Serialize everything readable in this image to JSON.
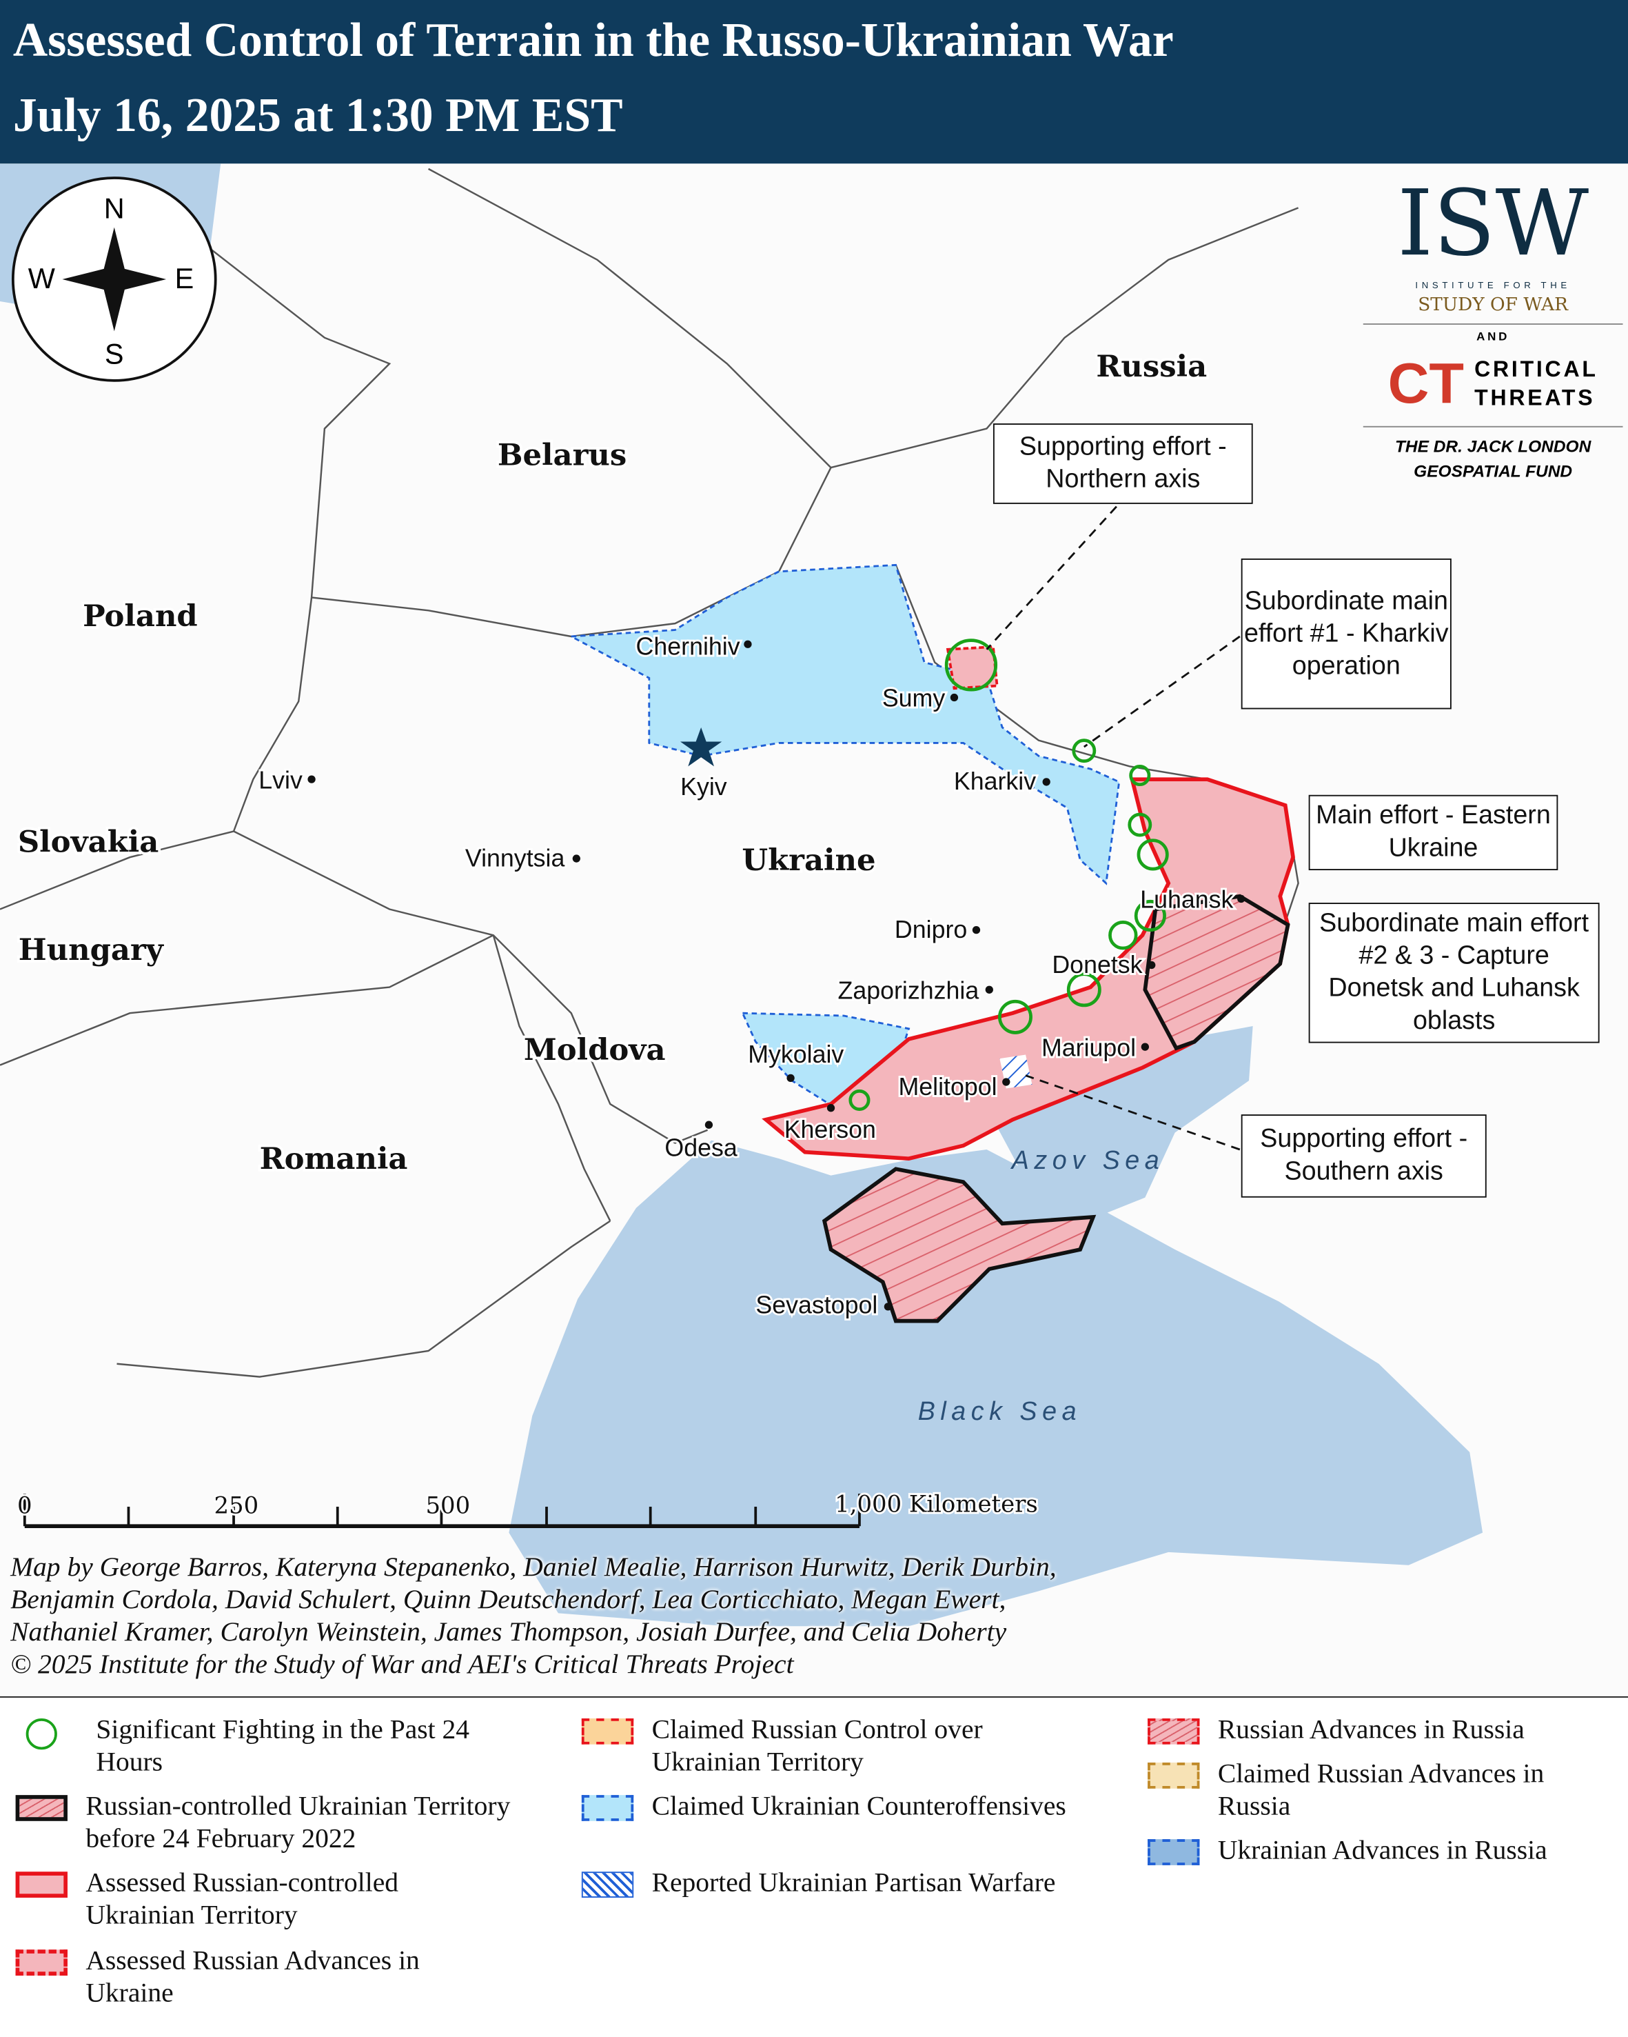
{
  "header": {
    "title": "Assessed Control of Terrain in the Russo-Ukrainian War",
    "subtitle": "July 16, 2025 at 1:30 PM EST"
  },
  "compass": {
    "n": "N",
    "s": "S",
    "e": "E",
    "w": "W"
  },
  "logos": {
    "isw": "ISW",
    "isw_line1": "INSTITUTE FOR THE",
    "isw_line2": "STUDY OF WAR",
    "and": "AND",
    "ct_mark": "CT",
    "ct_line1": "CRITICAL",
    "ct_line2": "THREATS",
    "fund_line1": "THE DR. JACK LONDON",
    "fund_line2": "GEOSPATIAL FUND"
  },
  "countries": {
    "russia": "Russia",
    "belarus": "Belarus",
    "poland": "Poland",
    "ukraine": "Ukraine",
    "slovakia": "Slovakia",
    "hungary": "Hungary",
    "moldova": "Moldova",
    "romania": "Romania"
  },
  "cities": {
    "chernihiv": "Chernihiv",
    "sumy": "Sumy",
    "kyiv": "Kyiv",
    "kharkiv": "Kharkiv",
    "lviv": "Lviv",
    "vinnytsia": "Vinnytsia",
    "dnipro": "Dnipro",
    "luhansk": "Luhansk",
    "donetsk": "Donetsk",
    "zaporizhzhia": "Zaporizhzhia",
    "mariupol": "Mariupol",
    "mykolaiv": "Mykolaiv",
    "melitopol": "Melitopol",
    "kherson": "Kherson",
    "odesa": "Odesa",
    "sevastopol": "Sevastopol"
  },
  "seas": {
    "azov": "Azov Sea",
    "black": "Black Sea"
  },
  "callouts": {
    "northern": "Supporting effort - Northern axis",
    "kharkiv": "Subordinate main effort #1 - Kharkiv operation",
    "eastern": "Main effort - Eastern Ukraine",
    "donetsk_luhansk": "Subordinate main effort #2 & 3 - Capture Donetsk and Luhansk oblasts",
    "southern": "Supporting effort - Southern axis"
  },
  "scale_bar": {
    "t0": "0",
    "t250": "250",
    "t500": "500",
    "t1000": "1,000 Kilometers"
  },
  "credits": [
    "Map by George Barros, Kateryna Stepanenko, Daniel Mealie, Harrison Hurwitz, Derik Durbin,",
    "Benjamin Cordola, David Schulert, Quinn Deutschendorf, Lea Corticchiato, Megan Ewert,",
    "Nathaniel Kramer, Carolyn Weinstein, James Thompson, Josiah Durfee, and Celia Doherty",
    "© 2025 Institute for the Study of War and AEI's Critical Threats Project"
  ],
  "legend": [
    {
      "label": "Significant Fighting in the Past 24 Hours",
      "symbol": "green-circle"
    },
    {
      "label": "Russian-controlled Ukrainian Territory before 24 February 2022",
      "symbol": "black-hatched"
    },
    {
      "label": "Assessed Russian-controlled Ukrainian Territory",
      "symbol": "red-outline-pink"
    },
    {
      "label": "Assessed Russian Advances in Ukraine",
      "symbol": "red-dashed-pink"
    },
    {
      "label": "Claimed Russian Control over Ukrainian Territory",
      "symbol": "orange-dashed"
    },
    {
      "label": "Claimed Ukrainian Counteroffensives",
      "symbol": "blue-dashed-light"
    },
    {
      "label": "Reported Ukrainian Partisan Warfare",
      "symbol": "blue-hatched"
    },
    {
      "label": "Russian Advances in Russia",
      "symbol": "red-dashed-hatched"
    },
    {
      "label": "Claimed Russian Advances in Russia",
      "symbol": "tan-dashed"
    },
    {
      "label": "Ukrainian Advances in Russia",
      "symbol": "blue-dashed-dark"
    }
  ],
  "colors": {
    "header": "#0f3b5c",
    "russian_control": "#f4b6bc",
    "russian_outline": "#e8141c",
    "ukr_counter": "#b3e5fa",
    "ukr_outline": "#1f5fd6",
    "water": "#b5d0e8",
    "fighting": "#1aa31a"
  }
}
